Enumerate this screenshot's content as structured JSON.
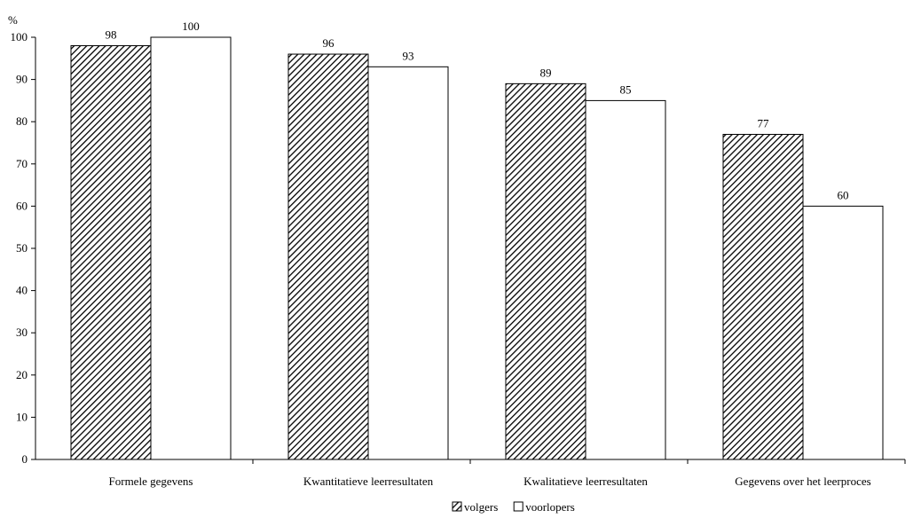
{
  "chart_data": {
    "type": "bar",
    "ylabel": "%",
    "ylim": [
      0,
      100
    ],
    "yticks": [
      0,
      10,
      20,
      30,
      40,
      50,
      60,
      70,
      80,
      90,
      100
    ],
    "categories": [
      "Formele gegevens",
      "Kwantitatieve leerresultaten",
      "Kwalitatieve leerresultaten",
      "Gegevens over het leerproces"
    ],
    "series": [
      {
        "name": "volgers",
        "values": [
          98,
          96,
          89,
          77
        ],
        "fill": "hatched"
      },
      {
        "name": "voorlopers",
        "values": [
          100,
          93,
          85,
          60
        ],
        "fill": "#ffffff"
      }
    ],
    "data_labels": true,
    "grid": false,
    "legend": "bottom-center"
  }
}
